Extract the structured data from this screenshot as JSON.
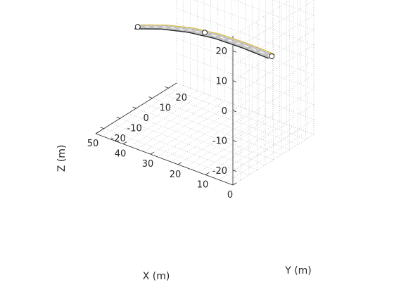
{
  "chart_data": {
    "type": "3d-surface",
    "title": "",
    "xlabel": "X (m)",
    "ylabel": "Y (m)",
    "zlabel": "Z (m)",
    "xlim": [
      0,
      50
    ],
    "ylim": [
      -25,
      25
    ],
    "zlim": [
      -25,
      25
    ],
    "xticks": [
      "0",
      "10",
      "20",
      "30",
      "40",
      "50"
    ],
    "yticks": [
      "-20",
      "-10",
      "0",
      "10",
      "20"
    ],
    "zticks": [
      "-20",
      "-10",
      "0",
      "10",
      "20"
    ],
    "grid": true,
    "road": {
      "width_m": 4,
      "surface_color": "#c8c8c8",
      "edge_color": "#262626",
      "lane_line_color": "#ffffff",
      "edge_line_color": "#e3c23a",
      "centerline": [
        {
          "x": 0,
          "y": -1,
          "z": 10
        },
        {
          "x": 10,
          "y": -0.6,
          "z": 10
        },
        {
          "x": 20,
          "y": -0.2,
          "z": 9.5
        },
        {
          "x": 30,
          "y": 0.2,
          "z": 8
        },
        {
          "x": 40,
          "y": 0.6,
          "z": 5.5
        },
        {
          "x": 50,
          "y": 1,
          "z": 2
        }
      ],
      "waypoints": [
        {
          "x": 0,
          "y": -1,
          "z": 10
        },
        {
          "x": 25,
          "y": 0,
          "z": 9
        },
        {
          "x": 50,
          "y": 1,
          "z": 2
        }
      ]
    }
  }
}
